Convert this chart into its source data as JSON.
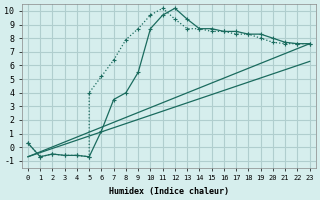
{
  "xlabel": "Humidex (Indice chaleur)",
  "bg_color": "#d6eeed",
  "grid_color": "#b0cece",
  "line_color": "#1a6b5e",
  "xlim": [
    -0.5,
    23.5
  ],
  "ylim": [
    -1.5,
    10.5
  ],
  "xticks": [
    0,
    1,
    2,
    3,
    4,
    5,
    6,
    7,
    8,
    9,
    10,
    11,
    12,
    13,
    14,
    15,
    16,
    17,
    18,
    19,
    20,
    21,
    22,
    23
  ],
  "yticks": [
    -1,
    0,
    1,
    2,
    3,
    4,
    5,
    6,
    7,
    8,
    9,
    10
  ],
  "series": [
    {
      "x": [
        0,
        1,
        2,
        3,
        4,
        5,
        5,
        6,
        7,
        8,
        9,
        10,
        11,
        12,
        13,
        14,
        15,
        16,
        17,
        18,
        19,
        20,
        21,
        22,
        23
      ],
      "y": [
        0.3,
        -0.7,
        -0.5,
        -0.6,
        -0.6,
        -0.7,
        4.0,
        5.2,
        6.4,
        7.9,
        8.7,
        9.7,
        10.2,
        9.4,
        8.7,
        8.7,
        8.5,
        8.5,
        8.3,
        8.3,
        8.0,
        7.7,
        7.6,
        7.6,
        7.6
      ],
      "style": "dotted",
      "marker": "+"
    },
    {
      "x": [
        0,
        1,
        2,
        3,
        4,
        5,
        6,
        7,
        8,
        9,
        10,
        11,
        12,
        13,
        14,
        15,
        16,
        17,
        18,
        19,
        20,
        21,
        22,
        23
      ],
      "y": [
        0.3,
        -0.7,
        -0.5,
        -0.6,
        -0.6,
        -0.7,
        1.2,
        3.5,
        4.0,
        5.5,
        8.7,
        9.7,
        10.2,
        9.4,
        8.7,
        8.7,
        8.5,
        8.5,
        8.3,
        8.3,
        8.0,
        7.7,
        7.6,
        7.6
      ],
      "style": "solid",
      "marker": "+"
    },
    {
      "x": [
        0,
        23
      ],
      "y": [
        -0.7,
        7.6
      ],
      "style": "solid",
      "marker": null
    },
    {
      "x": [
        0,
        23
      ],
      "y": [
        -0.7,
        6.3
      ],
      "style": "solid",
      "marker": null
    }
  ]
}
